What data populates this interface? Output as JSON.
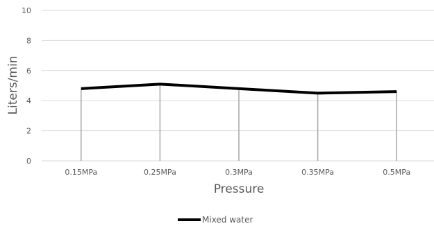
{
  "chart_data": {
    "type": "line",
    "xlabel": "Pressure",
    "ylabel": "Liters/min",
    "categories": [
      "0.15MPa",
      "0.25MPa",
      "0.3MPa",
      "0.35MPa",
      "0.5MPa"
    ],
    "ylim": [
      0,
      10
    ],
    "yticks": [
      0,
      2,
      4,
      6,
      8,
      10
    ],
    "grid": true,
    "drop_lines": true,
    "legend_position": "bottom",
    "series": [
      {
        "name": "Mixed water",
        "values": [
          4.8,
          5.1,
          4.8,
          4.5,
          4.6
        ],
        "color": "#000000"
      }
    ],
    "colors": {
      "gridline": "#d9d9d9",
      "dropline": "#a6a6a6",
      "text": "#595959"
    }
  }
}
